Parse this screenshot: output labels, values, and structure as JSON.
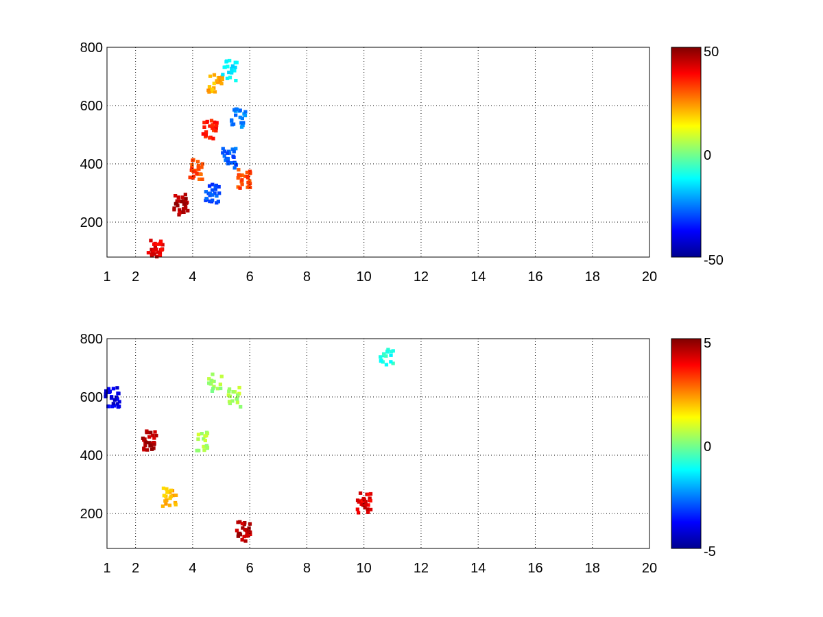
{
  "chart_data": [
    {
      "type": "heatmap",
      "title": "",
      "xlabel": "",
      "ylabel": "",
      "xlim": [
        1,
        20
      ],
      "ylim": [
        80,
        800
      ],
      "x_ticks": [
        "1",
        "2",
        "4",
        "6",
        "8",
        "10",
        "12",
        "14",
        "16",
        "18",
        "20"
      ],
      "y_ticks": [
        "200",
        "400",
        "600",
        "800"
      ],
      "grid": true,
      "colorbar": {
        "range": [
          -50,
          50
        ],
        "ticks": [
          "50",
          "0",
          "-50"
        ],
        "colormap": "jet"
      },
      "features": [
        {
          "x": 2.7,
          "y": 110,
          "value": 40
        },
        {
          "x": 3.6,
          "y": 260,
          "value": 45
        },
        {
          "x": 4.1,
          "y": 380,
          "value": 30
        },
        {
          "x": 4.6,
          "y": 520,
          "value": 35
        },
        {
          "x": 4.8,
          "y": 680,
          "value": 20
        },
        {
          "x": 4.7,
          "y": 300,
          "value": -30
        },
        {
          "x": 5.3,
          "y": 420,
          "value": -28
        },
        {
          "x": 5.6,
          "y": 560,
          "value": -25
        },
        {
          "x": 5.3,
          "y": 720,
          "value": -15
        },
        {
          "x": 5.8,
          "y": 350,
          "value": 30
        }
      ]
    },
    {
      "type": "heatmap",
      "title": "",
      "xlabel": "",
      "ylabel": "",
      "xlim": [
        1,
        20
      ],
      "ylim": [
        80,
        800
      ],
      "x_ticks": [
        "1",
        "2",
        "4",
        "6",
        "8",
        "10",
        "12",
        "14",
        "16",
        "18",
        "20"
      ],
      "y_ticks": [
        "200",
        "400",
        "600",
        "800"
      ],
      "grid": true,
      "colorbar": {
        "range": [
          -5,
          5
        ],
        "ticks": [
          "5",
          "0",
          "-5"
        ],
        "colormap": "jet"
      },
      "features": [
        {
          "x": 3.2,
          "y": 260,
          "value": 2
        },
        {
          "x": 4.4,
          "y": 450,
          "value": 0.5
        },
        {
          "x": 4.8,
          "y": 650,
          "value": 0.3
        },
        {
          "x": 5.5,
          "y": 600,
          "value": 0.5
        },
        {
          "x": 10.0,
          "y": 235,
          "value": 4
        },
        {
          "x": 5.8,
          "y": 140,
          "value": 4.5
        },
        {
          "x": 10.8,
          "y": 730,
          "value": -1
        },
        {
          "x": 2.5,
          "y": 450,
          "value": 4.5
        },
        {
          "x": 1.2,
          "y": 600,
          "value": -4
        }
      ]
    }
  ]
}
